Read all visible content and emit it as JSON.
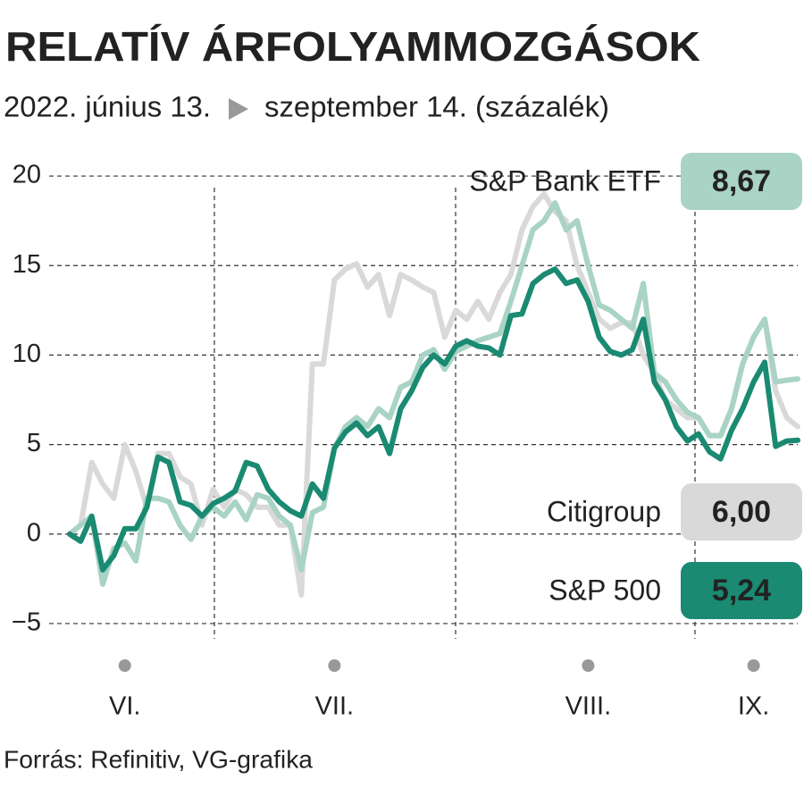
{
  "chart_data": {
    "type": "line",
    "title": "RELATÍV ÁRFOLYAMMOZGÁSOK",
    "subtitle_start": "2022. június 13.",
    "subtitle_end": "szeptember 14. (százalék)",
    "source": "Forrás: Refinitiv, VG-grafika",
    "categories": [
      null,
      null,
      null,
      null,
      null,
      "VI.",
      null,
      null,
      null,
      null,
      null,
      null,
      null,
      null,
      null,
      null,
      null,
      null,
      null,
      null,
      null,
      null,
      null,
      null,
      "VII.",
      null,
      null,
      null,
      null,
      null,
      null,
      null,
      null,
      null,
      null,
      null,
      null,
      null,
      null,
      null,
      null,
      null,
      null,
      null,
      null,
      null,
      null,
      "VIII.",
      null,
      null,
      null,
      null,
      null,
      null,
      null,
      null,
      null,
      null,
      null,
      null,
      null,
      null,
      "IX.",
      null,
      null,
      null,
      null
    ],
    "ylim": [
      -6.5,
      21.5
    ],
    "yticks": [
      {
        "value": -5,
        "label": "−5"
      },
      0,
      5,
      10,
      15,
      20
    ],
    "grid": true,
    "series": [
      {
        "name": "Citigroup",
        "color": "#d9d9d9",
        "label_color": "#111",
        "values": [
          0,
          0.5,
          4,
          2.8,
          2,
          5,
          3.5,
          1.5,
          4.5,
          4.5,
          3.2,
          2.8,
          0.5,
          2.5,
          1.5,
          2.5,
          2.2,
          1.5,
          1.5,
          0.5,
          0.5,
          -3.4,
          9.5,
          9.5,
          14.2,
          14.8,
          15.1,
          13.8,
          14.5,
          12.2,
          14.5,
          14.2,
          13.8,
          13.5,
          11,
          12.5,
          12,
          13,
          12,
          13.5,
          14.5,
          17,
          18.3,
          19,
          18,
          17.5,
          15,
          13.5,
          12,
          11.5,
          11.8,
          11.8,
          10,
          9,
          7.5,
          7,
          6.5,
          6.5,
          5.5,
          5.5,
          7,
          9.5,
          11,
          12,
          8,
          6.5,
          6.0
        ],
        "value_labels": [
          null,
          null,
          null,
          null,
          null,
          null,
          null,
          null,
          null,
          null,
          null,
          null,
          null,
          null,
          null,
          null,
          null,
          null,
          null,
          null,
          null,
          null,
          null,
          null,
          null,
          null,
          null,
          null,
          null,
          null,
          null,
          null,
          null,
          null,
          null,
          null,
          null,
          null,
          null,
          null,
          null,
          null,
          null,
          null,
          null,
          null,
          null,
          null,
          null,
          null,
          null,
          null,
          null,
          null,
          null,
          null,
          null,
          null,
          null,
          null,
          null,
          null,
          null,
          null,
          null,
          null,
          "6,00"
        ]
      },
      {
        "name": "S&P Bank ETF",
        "color": "#a9d3c5",
        "label_color": "#ffffff",
        "values": [
          0,
          0.5,
          1,
          -2.8,
          -0.8,
          -0.5,
          -1.5,
          2,
          2,
          1.8,
          0.5,
          -0.3,
          1,
          1.5,
          1,
          1.8,
          0.8,
          2.2,
          2,
          1,
          0.5,
          -2,
          1.2,
          1.5,
          4.8,
          6,
          6.5,
          6,
          7,
          6.5,
          8.2,
          8.5,
          10,
          10.3,
          9.2,
          10.2,
          10.5,
          10.8,
          11,
          11.2,
          13,
          15,
          17,
          17.5,
          18.5,
          17,
          17.5,
          15,
          12.8,
          12.5,
          12,
          11.5,
          14,
          9,
          8.5,
          7.5,
          6.8,
          6.5,
          5.5,
          5.5,
          7,
          9.5,
          11,
          12,
          8.5,
          8.6,
          8.67
        ],
        "value_labels": [
          null,
          null,
          null,
          null,
          null,
          null,
          null,
          null,
          null,
          null,
          null,
          null,
          null,
          null,
          null,
          null,
          null,
          null,
          null,
          null,
          null,
          null,
          null,
          null,
          null,
          null,
          null,
          null,
          null,
          null,
          null,
          null,
          null,
          null,
          null,
          null,
          null,
          null,
          null,
          null,
          null,
          null,
          null,
          null,
          null,
          null,
          null,
          null,
          null,
          null,
          null,
          null,
          null,
          null,
          null,
          null,
          null,
          null,
          null,
          null,
          null,
          null,
          null,
          null,
          null,
          null,
          "8,67"
        ]
      },
      {
        "name": "S&P 500",
        "color": "#1a8a72",
        "label_color": "#ffffff",
        "values": [
          0,
          -0.4,
          1,
          -2,
          -1.2,
          0.3,
          0.3,
          1.5,
          4.3,
          4,
          1.8,
          1.6,
          1,
          1.7,
          2,
          2.4,
          4,
          3.8,
          2.5,
          1.8,
          1.3,
          1,
          2.8,
          2,
          4.8,
          5.7,
          6.2,
          5.5,
          6,
          4.5,
          7,
          8,
          9.3,
          10,
          9.5,
          10.5,
          10.8,
          10.5,
          10.4,
          10,
          12.2,
          12.3,
          14,
          14.5,
          14.8,
          14,
          14.2,
          13,
          11,
          10.2,
          10,
          10.3,
          12,
          8.5,
          7.5,
          6,
          5.2,
          5.6,
          4.6,
          4.2,
          5.8,
          7,
          8.5,
          9.6,
          4.9,
          5.2,
          5.24
        ],
        "value_labels": [
          null,
          null,
          null,
          null,
          null,
          null,
          null,
          null,
          null,
          null,
          null,
          null,
          null,
          null,
          null,
          null,
          null,
          null,
          null,
          null,
          null,
          null,
          null,
          null,
          null,
          null,
          null,
          null,
          null,
          null,
          null,
          null,
          null,
          null,
          null,
          null,
          null,
          null,
          null,
          null,
          null,
          null,
          null,
          null,
          null,
          null,
          null,
          null,
          null,
          null,
          null,
          null,
          null,
          null,
          null,
          null,
          null,
          null,
          null,
          null,
          null,
          null,
          null,
          null,
          null,
          null,
          "5,24"
        ]
      }
    ]
  }
}
